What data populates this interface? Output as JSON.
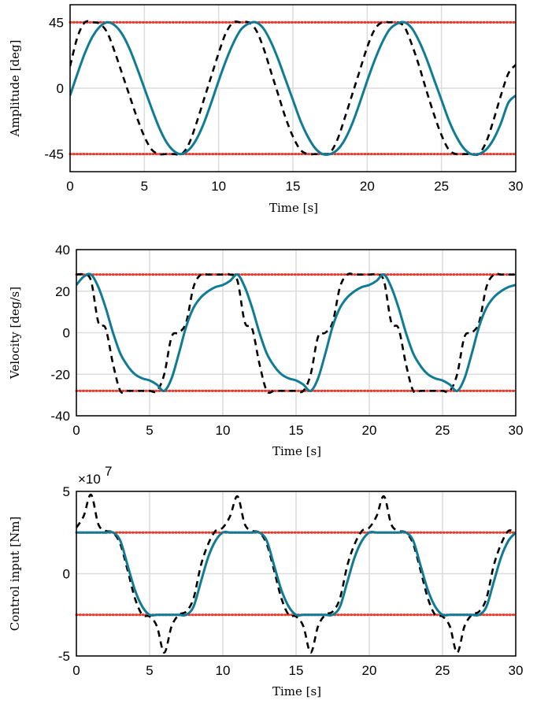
{
  "chart_data": [
    {
      "type": "line",
      "xlabel": "Time [s]",
      "ylabel": "Amplitude [deg]",
      "xlim": [
        0,
        30
      ],
      "ylim": [
        -57,
        57
      ],
      "xticks": [
        0,
        5,
        10,
        15,
        20,
        25,
        30
      ],
      "yticks": [
        -45,
        0,
        45
      ],
      "ytick_labels": [
        "-45",
        "0",
        "45"
      ],
      "grid": true,
      "colors": {
        "solid": "#0f7b95",
        "dashed": "#000000",
        "limit": "#e8392c"
      },
      "limits": [
        45,
        -45
      ],
      "series": [
        {
          "style": "solid",
          "x": [
            0,
            0.5,
            1,
            1.5,
            2,
            2.5,
            3,
            3.5,
            4,
            4.5,
            5,
            5.5,
            6,
            6.5,
            7,
            7.5,
            8,
            8.5,
            9,
            9.5,
            10,
            10.5,
            11,
            11.5,
            12,
            12.5,
            13,
            13.5,
            14,
            14.5,
            15,
            15.5,
            16,
            16.5,
            17,
            17.5,
            18,
            18.5,
            19,
            19.5,
            20,
            20.5,
            21,
            21.5,
            22,
            22.5,
            23,
            23.5,
            24,
            24.5,
            25,
            25.5,
            26,
            26.5,
            27,
            27.5,
            28,
            28.5,
            29,
            29.5,
            30
          ],
          "y": [
            -5,
            10,
            24,
            35,
            42,
            45,
            43,
            37,
            27,
            14,
            0,
            -14,
            -27,
            -37,
            -43,
            -45,
            -42,
            -35,
            -24,
            -10,
            5,
            19,
            31,
            40,
            44,
            45,
            41,
            32,
            20,
            6,
            -8,
            -22,
            -33,
            -41,
            -45,
            -45,
            -42,
            -35,
            -24,
            -10,
            5,
            19,
            31,
            40,
            44,
            45,
            41,
            32,
            20,
            6,
            -8,
            -22,
            -33,
            -41,
            -45,
            -45,
            -42,
            -35,
            -24,
            -10,
            -5
          ]
        },
        {
          "style": "dashed",
          "x": [
            0,
            0.5,
            1,
            1.5,
            2,
            2.5,
            3,
            3.5,
            4,
            4.5,
            5,
            5.5,
            6,
            6.5,
            7,
            7.5,
            8,
            8.5,
            9,
            9.5,
            10,
            10.5,
            11,
            11.5,
            12,
            12.5,
            13,
            13.5,
            14,
            14.5,
            15,
            15.5,
            16,
            16.5,
            17,
            17.5,
            18,
            18.5,
            19,
            19.5,
            20,
            20.5,
            21,
            21.5,
            22,
            22.5,
            23,
            23.5,
            24,
            24.5,
            25,
            25.5,
            26,
            26.5,
            27,
            27.5,
            28,
            28.5,
            29,
            29.5,
            30
          ],
          "y": [
            15,
            35,
            45,
            45,
            44,
            38,
            25,
            10,
            -5,
            -20,
            -33,
            -42,
            -45,
            -45,
            -45,
            -45,
            -38,
            -24,
            -8,
            8,
            24,
            38,
            45,
            45,
            45,
            40,
            28,
            12,
            -4,
            -20,
            -33,
            -42,
            -45,
            -45,
            -45,
            -44,
            -35,
            -20,
            -4,
            12,
            28,
            40,
            45,
            45,
            45,
            42,
            30,
            15,
            -2,
            -18,
            -32,
            -42,
            -45,
            -45,
            -45,
            -45,
            -37,
            -22,
            -5,
            10,
            16
          ]
        }
      ]
    },
    {
      "type": "line",
      "xlabel": "Time [s]",
      "ylabel": "Velocity [deg/s]",
      "xlim": [
        0,
        30
      ],
      "ylim": [
        -40,
        40
      ],
      "xticks": [
        0,
        5,
        10,
        15,
        20,
        25,
        30
      ],
      "yticks": [
        -40,
        -20,
        0,
        20,
        40
      ],
      "ytick_labels": [
        "-40",
        "-20",
        "0",
        "20",
        "40"
      ],
      "grid": true,
      "colors": {
        "solid": "#0f7b95",
        "dashed": "#000000",
        "limit": "#e8392c"
      },
      "limits": [
        28,
        -28
      ],
      "series": [
        {
          "style": "solid",
          "x": [
            0,
            0.5,
            1,
            1.5,
            2,
            2.5,
            3,
            3.5,
            4,
            4.5,
            5,
            5.5,
            6,
            6.5,
            7,
            7.5,
            8,
            8.5,
            9,
            9.5,
            10,
            10.5,
            11,
            11.5,
            12,
            12.5,
            13,
            13.5,
            14,
            14.5,
            15,
            15.5,
            16,
            16.5,
            17,
            17.5,
            18,
            18.5,
            19,
            19.5,
            20,
            20.5,
            21,
            21.5,
            22,
            22.5,
            23,
            23.5,
            24,
            24.5,
            25,
            25.5,
            26,
            26.5,
            27,
            27.5,
            28,
            28.5,
            29,
            29.5,
            30
          ],
          "y": [
            23,
            27,
            28,
            22,
            12,
            0,
            -10,
            -16,
            -20,
            -22,
            -23,
            -25,
            -28,
            -22,
            -10,
            3,
            12,
            17,
            20,
            22,
            23,
            25,
            28,
            22,
            12,
            0,
            -10,
            -16,
            -20,
            -22,
            -23,
            -25,
            -28,
            -22,
            -10,
            3,
            12,
            17,
            20,
            22,
            23,
            25,
            28,
            22,
            12,
            0,
            -10,
            -16,
            -20,
            -22,
            -23,
            -25,
            -28,
            -22,
            -10,
            3,
            12,
            17,
            20,
            22,
            23
          ]
        },
        {
          "style": "dashed",
          "x": [
            0,
            0.5,
            1,
            1.5,
            2,
            2.5,
            3,
            3.5,
            4,
            4.5,
            5,
            5.5,
            6,
            6.5,
            7,
            7.5,
            8,
            8.5,
            9,
            9.5,
            10,
            10.5,
            11,
            11.5,
            12,
            12.5,
            13,
            13.5,
            14,
            14.5,
            15,
            15.5,
            16,
            16.5,
            17,
            17.5,
            18,
            18.5,
            19,
            19.5,
            20,
            20.5,
            21,
            21.5,
            22,
            22.5,
            23,
            23.5,
            24,
            24.5,
            25,
            25.5,
            26,
            26.5,
            27,
            27.5,
            28,
            28.5,
            29,
            29.5,
            30
          ],
          "y": [
            28,
            28,
            25,
            5,
            2,
            -15,
            -28,
            -28,
            -28,
            -28,
            -28,
            -28,
            -20,
            -2,
            0,
            5,
            22,
            28,
            28,
            28,
            28,
            28,
            25,
            5,
            2,
            -15,
            -28,
            -28,
            -28,
            -28,
            -28,
            -28,
            -20,
            -2,
            0,
            5,
            22,
            28,
            28,
            28,
            28,
            28,
            25,
            5,
            2,
            -15,
            -28,
            -28,
            -28,
            -28,
            -28,
            -28,
            -20,
            -2,
            0,
            5,
            22,
            28,
            28,
            28,
            28
          ]
        }
      ]
    },
    {
      "type": "line",
      "xlabel": "Time [s]",
      "ylabel": "Control input [Nm]",
      "xlim": [
        0,
        30
      ],
      "ylim": [
        -5,
        5
      ],
      "exponent": "×10",
      "exponent_power": "7",
      "xticks": [
        0,
        5,
        10,
        15,
        20,
        25,
        30
      ],
      "yticks": [
        -5,
        0,
        5
      ],
      "ytick_labels": [
        "-5",
        "0",
        "5"
      ],
      "grid": true,
      "colors": {
        "solid": "#0f7b95",
        "dashed": "#000000",
        "limit": "#e8392c"
      },
      "limits": [
        2.5,
        -2.5
      ],
      "series": [
        {
          "style": "solid",
          "x": [
            0,
            0.5,
            1,
            1.5,
            2,
            2.5,
            3,
            3.5,
            4,
            4.5,
            5,
            5.5,
            6,
            6.5,
            7,
            7.5,
            8,
            8.5,
            9,
            9.5,
            10,
            10.5,
            11,
            11.5,
            12,
            12.5,
            13,
            13.5,
            14,
            14.5,
            15,
            15.5,
            16,
            16.5,
            17,
            17.5,
            18,
            18.5,
            19,
            19.5,
            20,
            20.5,
            21,
            21.5,
            22,
            22.5,
            23,
            23.5,
            24,
            24.5,
            25,
            25.5,
            26,
            26.5,
            27,
            27.5,
            28,
            28.5,
            29,
            29.5,
            30
          ],
          "y": [
            2.5,
            2.5,
            2.5,
            2.5,
            2.5,
            2.5,
            2.0,
            0.5,
            -1.0,
            -2.0,
            -2.5,
            -2.5,
            -2.5,
            -2.5,
            -2.5,
            -2.5,
            -2.0,
            -0.5,
            1.0,
            2.0,
            2.5,
            2.5,
            2.5,
            2.5,
            2.5,
            2.5,
            2.0,
            0.5,
            -1.0,
            -2.0,
            -2.5,
            -2.5,
            -2.5,
            -2.5,
            -2.5,
            -2.5,
            -2.0,
            -0.5,
            1.0,
            2.0,
            2.5,
            2.5,
            2.5,
            2.5,
            2.5,
            2.5,
            2.0,
            0.5,
            -1.0,
            -2.0,
            -2.5,
            -2.5,
            -2.5,
            -2.5,
            -2.5,
            -2.5,
            -2.0,
            -0.5,
            1.0,
            2.0,
            2.5
          ]
        },
        {
          "style": "dashed",
          "x": [
            0,
            0.5,
            1,
            1.5,
            2,
            2.5,
            3,
            3.5,
            4,
            4.5,
            5,
            5.5,
            6,
            6.5,
            7,
            7.5,
            8,
            8.5,
            9,
            9.5,
            10,
            10.5,
            11,
            11.5,
            12,
            12.5,
            13,
            13.5,
            14,
            14.5,
            15,
            15.5,
            16,
            16.5,
            17,
            17.5,
            18,
            18.5,
            19,
            19.5,
            20,
            20.5,
            21,
            21.5,
            22,
            22.5,
            23,
            23.5,
            24,
            24.5,
            25,
            25.5,
            26,
            26.5,
            27,
            27.5,
            28,
            28.5,
            29,
            29.5,
            30
          ],
          "y": [
            2.8,
            3.5,
            4.8,
            3.0,
            2.6,
            2.5,
            1.8,
            0.2,
            -1.5,
            -2.5,
            -2.6,
            -3.2,
            -4.8,
            -3.2,
            -2.5,
            -2.3,
            -1.5,
            0.5,
            1.8,
            2.6,
            2.8,
            3.5,
            4.7,
            3.0,
            2.6,
            2.5,
            1.8,
            0.2,
            -1.5,
            -2.5,
            -2.6,
            -3.2,
            -4.8,
            -3.2,
            -2.5,
            -2.3,
            -1.5,
            0.5,
            1.8,
            2.6,
            2.8,
            3.5,
            4.7,
            3.0,
            2.6,
            2.5,
            1.8,
            0.2,
            -1.5,
            -2.5,
            -2.6,
            -3.2,
            -4.8,
            -3.2,
            -2.5,
            -2.3,
            -1.5,
            0.5,
            1.8,
            2.6,
            2.5
          ]
        }
      ]
    }
  ]
}
